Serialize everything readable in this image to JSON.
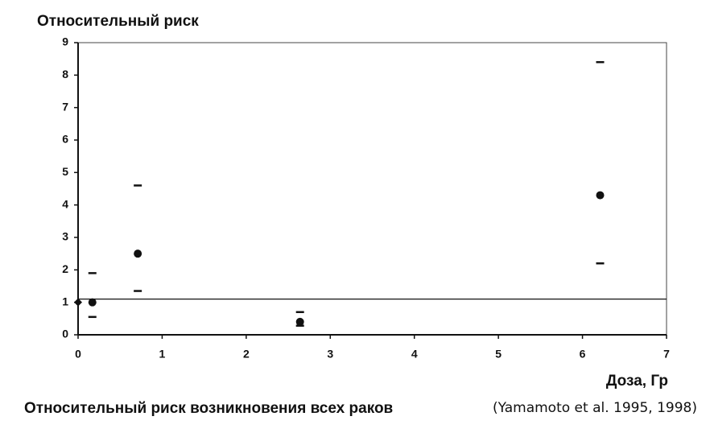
{
  "chart_data": {
    "type": "scatter",
    "y_label": "Относительный риск",
    "x_label": "Доза, Гр",
    "title": "Относительный риск возникновения всех раков",
    "source": "(Yamamoto et al. 1995, 1998)",
    "series": [
      {
        "color": "#111111",
        "x": [
          0,
          0.17,
          0.71,
          2.64,
          6.21
        ],
        "values": [
          1,
          1,
          2.5,
          0.4,
          4.3
        ],
        "lower": [
          null,
          0.55,
          1.35,
          0.28,
          2.2
        ],
        "upper": [
          null,
          1.9,
          4.6,
          0.7,
          8.4
        ],
        "markers": [
          "diamond",
          "circle",
          "circle",
          "circle",
          "circle"
        ]
      }
    ],
    "reference_line": 1.1,
    "xlim": [
      0,
      7
    ],
    "xticks": [
      0,
      1,
      2,
      3,
      4,
      5,
      6,
      7
    ],
    "ylim": [
      0,
      9
    ],
    "yticks": [
      0,
      1,
      2,
      3,
      4,
      5,
      6,
      7,
      8,
      9
    ],
    "grid": false
  }
}
